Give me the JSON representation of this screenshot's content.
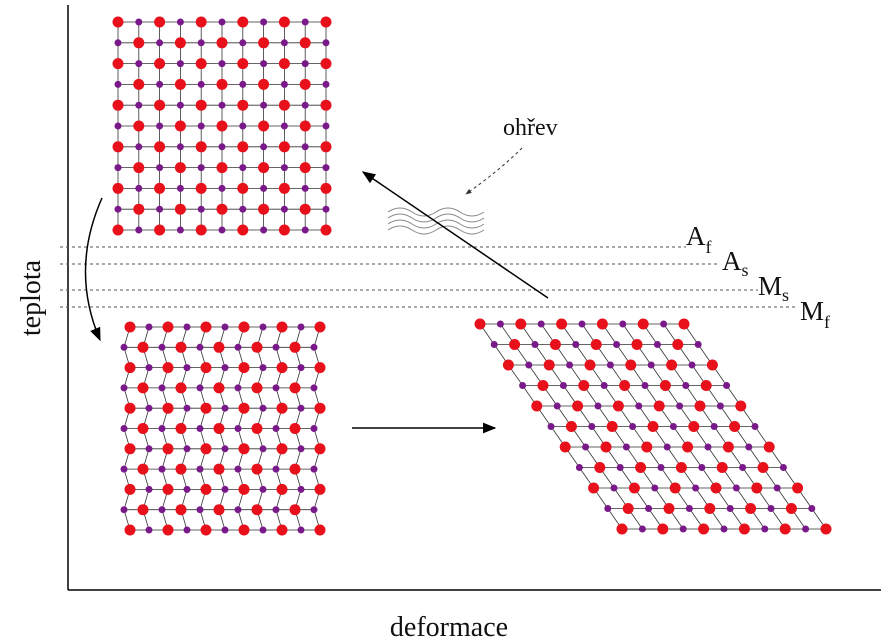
{
  "axes": {
    "y_label": "teplota",
    "x_label": "deformace"
  },
  "heating_label": "ohřev",
  "temperatures": [
    {
      "main": "A",
      "sub": "f"
    },
    {
      "main": "A",
      "sub": "s"
    },
    {
      "main": "M",
      "sub": "s"
    },
    {
      "main": "M",
      "sub": "f"
    }
  ]
}
